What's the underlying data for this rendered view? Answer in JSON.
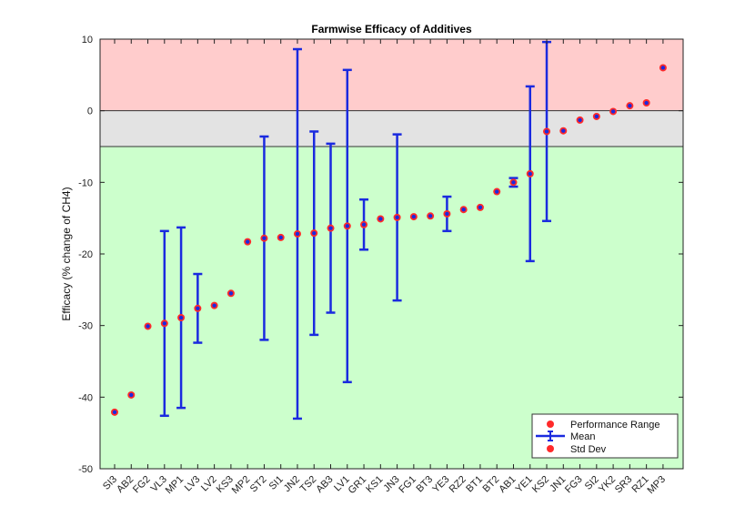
{
  "chart_data": {
    "type": "scatter",
    "title": "Farmwise Efficacy of Additives",
    "xlabel": "",
    "ylabel": "Efficacy (% change of CH4)",
    "ylim": [
      -50,
      10
    ],
    "yticks": [
      -50,
      -40,
      -30,
      -20,
      -10,
      0,
      10
    ],
    "grid": false,
    "legend_position": "bottom-right",
    "categories": [
      "SI3",
      "AB2",
      "FG2",
      "VL3",
      "MP1",
      "LV3",
      "LV2",
      "KS3",
      "MP2",
      "ST2",
      "SI1",
      "JN2",
      "TS2",
      "AB3",
      "LV1",
      "GR1",
      "KS1",
      "JN3",
      "FG1",
      "BT3",
      "YE3",
      "RZ2",
      "BT1",
      "BT2",
      "AB1",
      "YE1",
      "KS2",
      "JN1",
      "FG3",
      "SI2",
      "YK2",
      "SR3",
      "RZ1",
      "MP3"
    ],
    "means": [
      -42.1,
      -39.7,
      -30.1,
      -29.7,
      -28.9,
      -27.6,
      -27.2,
      -25.5,
      -18.3,
      -17.8,
      -17.7,
      -17.2,
      -17.1,
      -16.4,
      -16.1,
      -15.9,
      -15.1,
      -14.9,
      -14.8,
      -14.7,
      -14.4,
      -13.8,
      -13.5,
      -11.3,
      -10.0,
      -8.8,
      -2.9,
      -2.8,
      -1.3,
      -0.8,
      -0.1,
      0.7,
      1.1,
      6.0
    ],
    "std_dev": [
      0,
      0,
      0,
      12.9,
      12.6,
      4.8,
      0,
      0,
      0,
      14.2,
      0,
      25.8,
      14.2,
      11.8,
      21.8,
      3.5,
      0,
      11.6,
      0,
      0,
      2.4,
      0,
      0,
      0,
      0.6,
      12.2,
      12.5,
      0,
      0,
      0,
      0,
      0,
      0,
      0
    ],
    "series": [
      {
        "name": "Performance Range",
        "color": "#ff2a2a"
      },
      {
        "name": "Mean",
        "color": "#1a2adf"
      },
      {
        "name": "Std Dev",
        "color": "#ff2a2a"
      }
    ],
    "bands": [
      {
        "from": 0,
        "to": 10,
        "color": "#ffcccc"
      },
      {
        "from": -5,
        "to": 0,
        "color": "#e3e3e3"
      },
      {
        "from": -50,
        "to": -5,
        "color": "#ccffcc"
      }
    ]
  }
}
